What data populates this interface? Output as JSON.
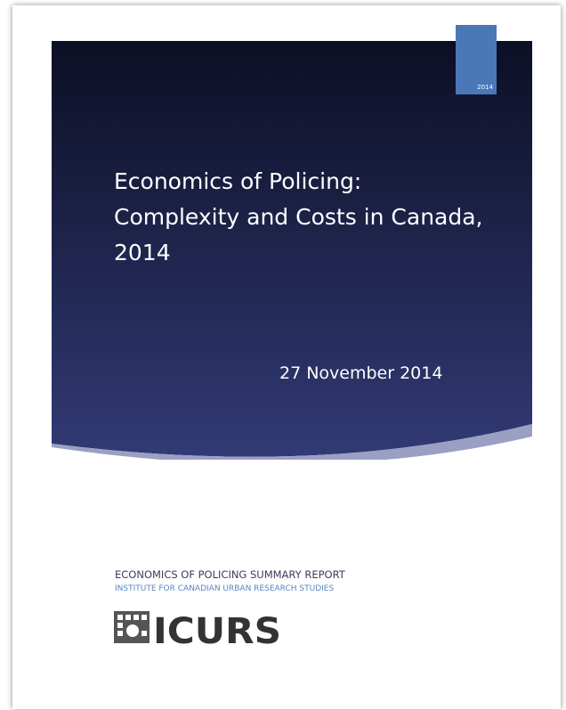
{
  "cover": {
    "year_tab": "2014",
    "title": "Economics of Policing: Complexity and Costs in Canada, 2014",
    "date": "27 November 2014",
    "report_name": "ECONOMICS OF POLICING SUMMARY REPORT",
    "institute": "INSTITUTE FOR CANADIAN URBAN RESEARCH STUDIES",
    "logo": "ICURS"
  }
}
